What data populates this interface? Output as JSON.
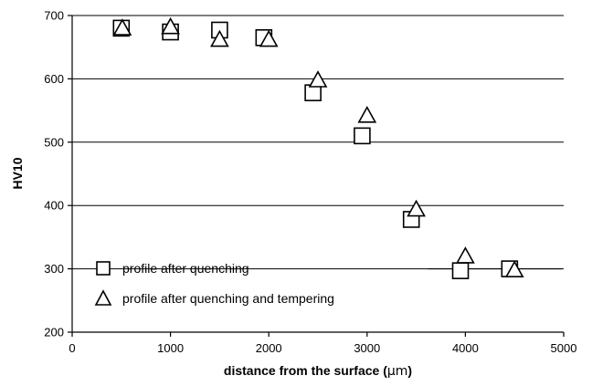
{
  "chart_data": {
    "type": "scatter",
    "xlabel_main": "distance from the surface (",
    "xlabel_unit": "μm",
    "xlabel_close": ")",
    "ylabel": "HV10",
    "xlim": [
      0,
      5000
    ],
    "ylim": [
      200,
      700
    ],
    "xticks": [
      0,
      1000,
      2000,
      3000,
      4000,
      5000
    ],
    "yticks": [
      200,
      300,
      400,
      500,
      600,
      700
    ],
    "grid": "horizontal",
    "legend_position": "bottom-left",
    "series": [
      {
        "name": "profile after quenching",
        "marker": "square",
        "x": [
          500,
          1000,
          1500,
          1950,
          2450,
          2950,
          3450,
          3950,
          4450
        ],
        "y": [
          680,
          674,
          677,
          665,
          578,
          510,
          378,
          297,
          300
        ]
      },
      {
        "name": "profile after quenching and tempering",
        "marker": "triangle",
        "x": [
          510,
          1000,
          1500,
          2000,
          2500,
          3000,
          3500,
          4000,
          4500
        ],
        "y": [
          680,
          682,
          662,
          662,
          598,
          542,
          394,
          320,
          298
        ]
      }
    ],
    "annotations": [
      {
        "type": "segment",
        "x": [
          3620,
          4980
        ],
        "y": [
          300,
          300
        ]
      }
    ]
  }
}
